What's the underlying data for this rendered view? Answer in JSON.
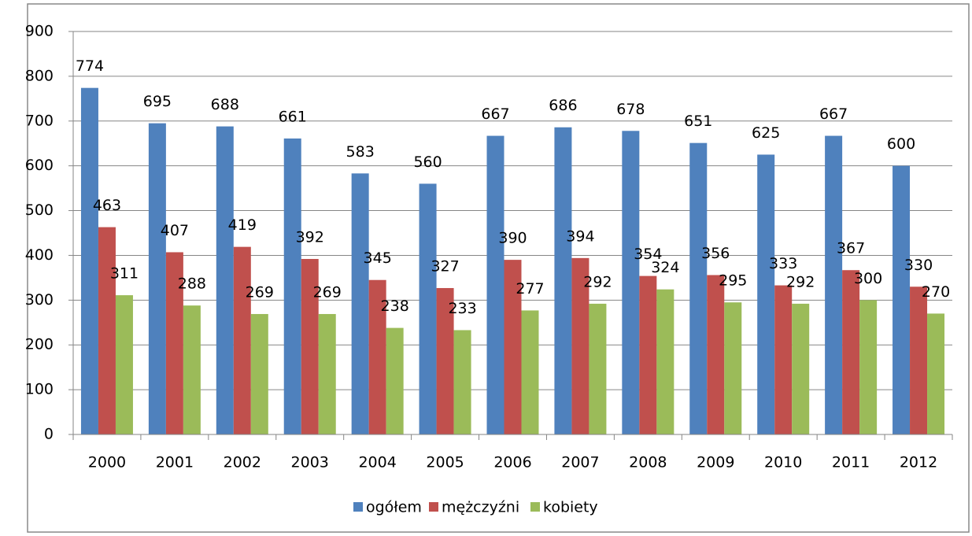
{
  "chart_data": {
    "type": "bar",
    "categories": [
      "2000",
      "2001",
      "2002",
      "2003",
      "2004",
      "2005",
      "2006",
      "2007",
      "2008",
      "2009",
      "2010",
      "2011",
      "2012"
    ],
    "series": [
      {
        "name": "ogółem",
        "color": "#4f81bd",
        "values": [
          774,
          695,
          688,
          661,
          583,
          560,
          667,
          686,
          678,
          651,
          625,
          667,
          600
        ]
      },
      {
        "name": "mężczyźni",
        "color": "#c0504d",
        "values": [
          463,
          407,
          419,
          392,
          345,
          327,
          390,
          394,
          354,
          356,
          333,
          367,
          330
        ]
      },
      {
        "name": "kobiety",
        "color": "#9bbb59",
        "values": [
          311,
          288,
          269,
          269,
          238,
          233,
          277,
          292,
          324,
          295,
          292,
          300,
          270
        ]
      }
    ],
    "ylim": [
      0,
      900
    ],
    "yticks": [
      0,
      100,
      200,
      300,
      400,
      500,
      600,
      700,
      800,
      900
    ],
    "grid": true,
    "legend": "bottom"
  }
}
